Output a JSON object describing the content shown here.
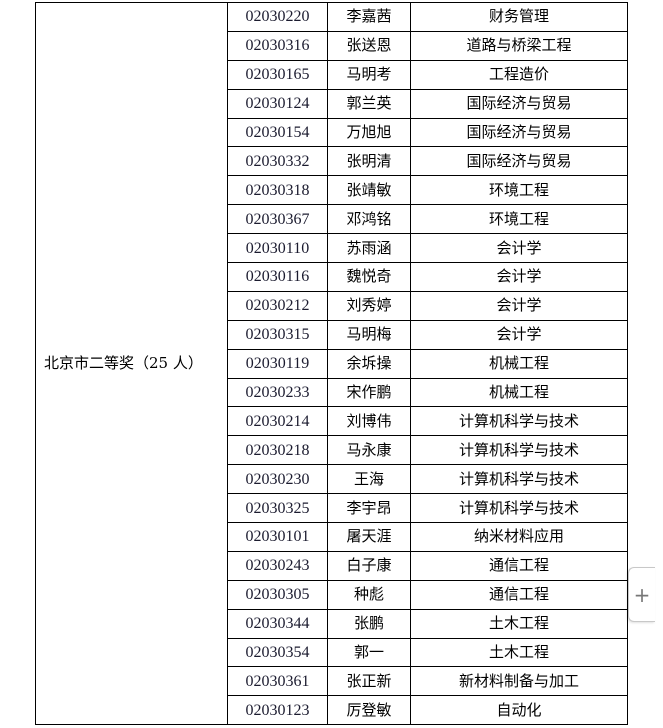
{
  "award": "北京市二等奖（25 人）",
  "rows": [
    {
      "id": "02030220",
      "name": "李嘉茜",
      "major": "财务管理"
    },
    {
      "id": "02030316",
      "name": "张送恩",
      "major": "道路与桥梁工程"
    },
    {
      "id": "02030165",
      "name": "马明考",
      "major": "工程造价"
    },
    {
      "id": "02030124",
      "name": "郭兰英",
      "major": "国际经济与贸易"
    },
    {
      "id": "02030154",
      "name": "万旭旭",
      "major": "国际经济与贸易"
    },
    {
      "id": "02030332",
      "name": "张明清",
      "major": "国际经济与贸易"
    },
    {
      "id": "02030318",
      "name": "张靖敏",
      "major": "环境工程"
    },
    {
      "id": "02030367",
      "name": "邓鸿铭",
      "major": "环境工程"
    },
    {
      "id": "02030110",
      "name": "苏雨涵",
      "major": "会计学"
    },
    {
      "id": "02030116",
      "name": "魏悦奇",
      "major": "会计学"
    },
    {
      "id": "02030212",
      "name": "刘秀婷",
      "major": "会计学"
    },
    {
      "id": "02030315",
      "name": "马明梅",
      "major": "会计学"
    },
    {
      "id": "02030119",
      "name": "余坼操",
      "major": "机械工程"
    },
    {
      "id": "02030233",
      "name": "宋作鹏",
      "major": "机械工程"
    },
    {
      "id": "02030214",
      "name": "刘博伟",
      "major": "计算机科学与技术"
    },
    {
      "id": "02030218",
      "name": "马永康",
      "major": "计算机科学与技术"
    },
    {
      "id": "02030230",
      "name": "王海",
      "major": "计算机科学与技术"
    },
    {
      "id": "02030325",
      "name": "李宇昂",
      "major": "计算机科学与技术"
    },
    {
      "id": "02030101",
      "name": "屠天涯",
      "major": "纳米材料应用"
    },
    {
      "id": "02030243",
      "name": "白子康",
      "major": "通信工程"
    },
    {
      "id": "02030305",
      "name": "种彪",
      "major": "通信工程"
    },
    {
      "id": "02030344",
      "name": "张鹏",
      "major": "土木工程"
    },
    {
      "id": "02030354",
      "name": "郭一",
      "major": "土木工程"
    },
    {
      "id": "02030361",
      "name": "张正新",
      "major": "新材料制备与加工"
    },
    {
      "id": "02030123",
      "name": "厉登敏",
      "major": "自动化"
    }
  ],
  "expand_button": {
    "icon": "plus-icon",
    "label": "+"
  }
}
